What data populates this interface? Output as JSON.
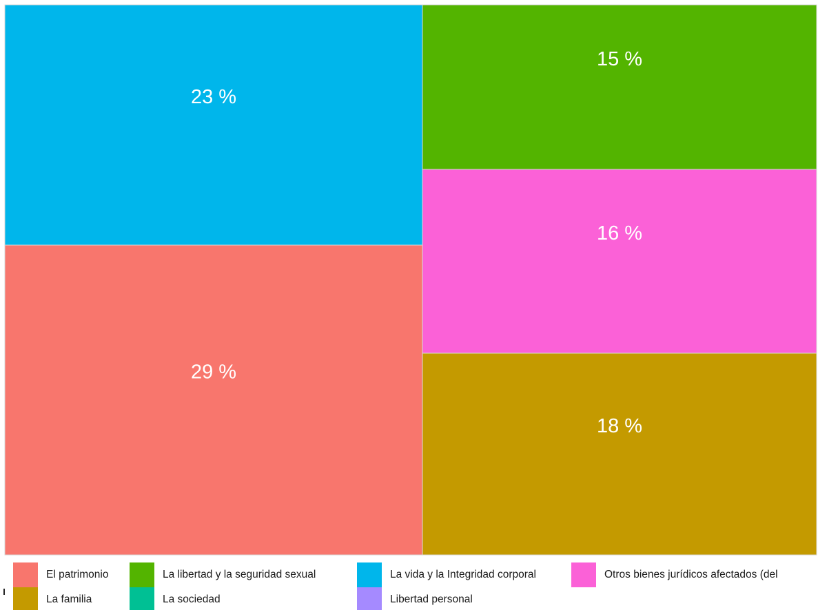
{
  "chart_data": {
    "type": "treemap",
    "tiles": [
      {
        "name": "El patrimonio",
        "label": "29 %",
        "color": "#F8766D"
      },
      {
        "name": "La vida y la Integridad corporal",
        "label": "23 %",
        "color": "#00B6EB"
      },
      {
        "name": "La familia",
        "label": "18 %",
        "color": "#C49A00"
      },
      {
        "name": "Otros bienes jurídicos afectados (del",
        "label": "16 %",
        "color": "#FB61D7"
      },
      {
        "name": "La libertad y la seguridad sexual",
        "label": "15 %",
        "color": "#53B400"
      }
    ],
    "legend": {
      "position": "bottom",
      "items": [
        {
          "label": "El patrimonio",
          "color": "#F8766D"
        },
        {
          "label": "La familia",
          "color": "#C49A00"
        },
        {
          "label": "La libertad y la seguridad sexual",
          "color": "#53B400"
        },
        {
          "label": "La sociedad",
          "color": "#00C094"
        },
        {
          "label": "La vida y la Integridad corporal",
          "color": "#00B6EB"
        },
        {
          "label": "Libertad personal",
          "color": "#A58AFF"
        },
        {
          "label": "Otros bienes jurídicos afectados (del",
          "color": "#FB61D7"
        }
      ]
    }
  }
}
